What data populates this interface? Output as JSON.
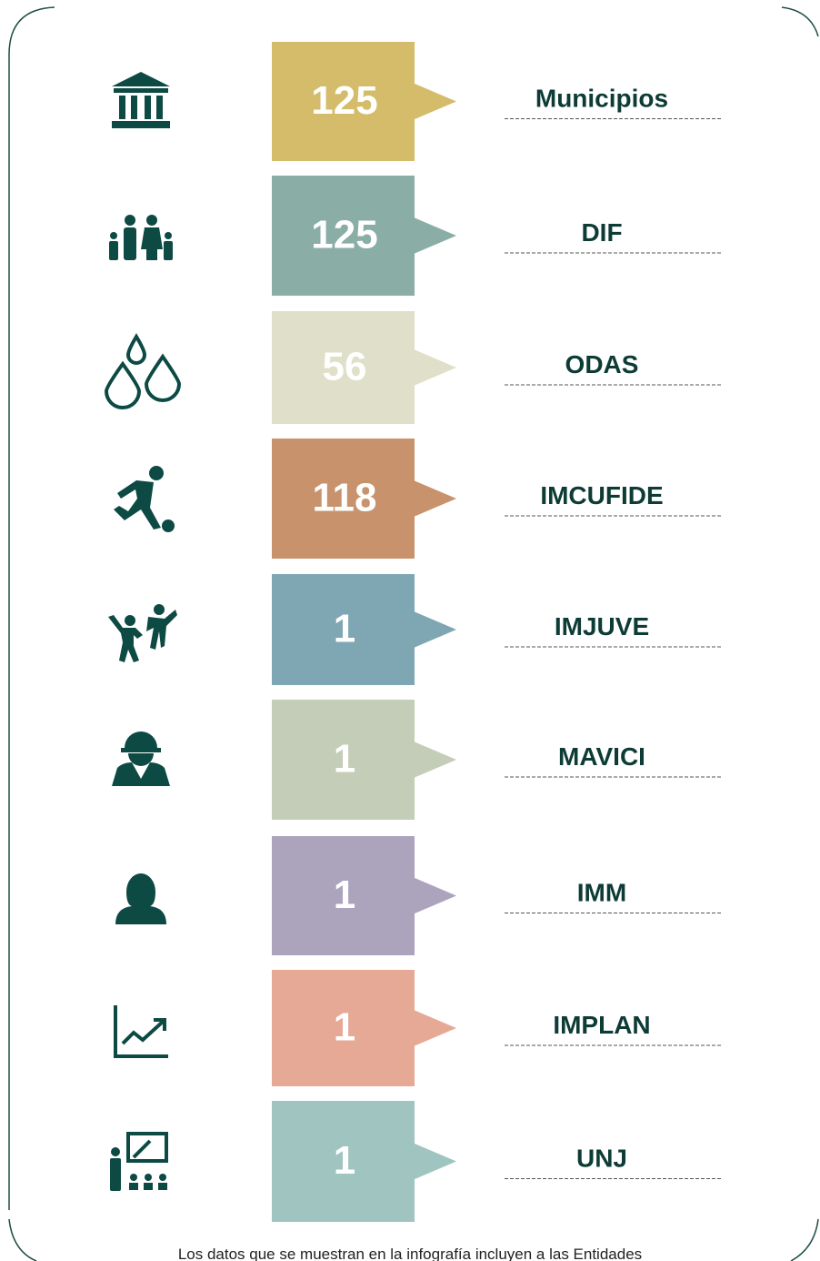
{
  "items": [
    {
      "value": "125",
      "label": "Municipios",
      "color": "#d4bc6a"
    },
    {
      "value": "125",
      "label": "DIF",
      "color": "#8aada6"
    },
    {
      "value": "56",
      "label": "ODAS",
      "color": "#e0dfca"
    },
    {
      "value": "118",
      "label": "IMCUFIDE",
      "color": "#c8936c"
    },
    {
      "value": "1",
      "label": "IMJUVE",
      "color": "#7ea7b3"
    },
    {
      "value": "1",
      "label": "MAVICI",
      "color": "#c4cdb7"
    },
    {
      "value": "1",
      "label": "IMM",
      "color": "#aca3bd"
    },
    {
      "value": "1",
      "label": "IMPLAN",
      "color": "#e6a996"
    },
    {
      "value": "1",
      "label": "UNJ",
      "color": "#a0c4bf"
    }
  ],
  "footer": "Los datos que se muestran en la infografía incluyen a las Entidades"
}
